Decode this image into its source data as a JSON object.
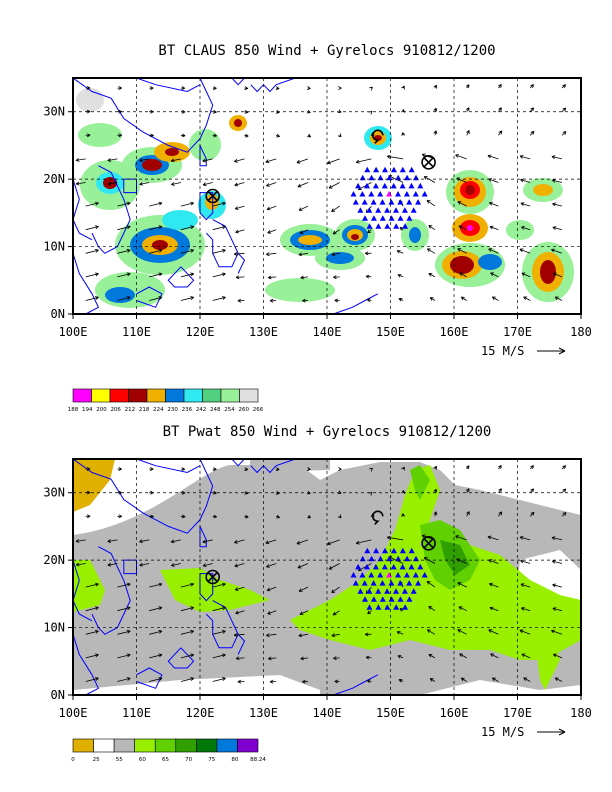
{
  "wind_ref_label": "15 M/S",
  "chart_data": [
    {
      "type": "heatmap",
      "title": "BT CLAUS 850 Wind + Gyrelocs 910812/1200",
      "x_ticks": [
        "100E",
        "110E",
        "120E",
        "130E",
        "140E",
        "150E",
        "160E",
        "170E",
        "180"
      ],
      "y_ticks": [
        "0N",
        "10N",
        "20N",
        "30N"
      ],
      "x_range": [
        100,
        180
      ],
      "y_range": [
        0,
        35
      ],
      "grid": true,
      "vector_ref": "15 M/S",
      "colorbar": {
        "labels": [
          "188",
          "194",
          "200",
          "206",
          "212",
          "218",
          "224",
          "230",
          "236",
          "242",
          "248",
          "254",
          "260",
          "266"
        ],
        "colors": [
          "#ff00ff",
          "#ffff00",
          "#ff0000",
          "#a00000",
          "#f0b000",
          "#0078dc",
          "#30e8f0",
          "#50d080",
          "#98f098",
          "#e0e0e0"
        ]
      },
      "gyre_locations": [
        {
          "lon": 122,
          "lat": 17.5,
          "marker": "cross-circle"
        },
        {
          "lon": 156,
          "lat": 22.5,
          "marker": "cross-circle"
        },
        {
          "lon": 148,
          "lat": 26.5,
          "marker": "spiral"
        }
      ]
    },
    {
      "type": "heatmap",
      "title": "BT Pwat 850 Wind + Gyrelocs 910812/1200",
      "x_ticks": [
        "100E",
        "110E",
        "120E",
        "130E",
        "140E",
        "150E",
        "160E",
        "170E",
        "180"
      ],
      "y_ticks": [
        "0N",
        "10N",
        "20N",
        "30N"
      ],
      "x_range": [
        100,
        180
      ],
      "y_range": [
        0,
        35
      ],
      "grid": true,
      "vector_ref": "15 M/S",
      "colorbar": {
        "labels": [
          "0",
          "25",
          "55",
          "60",
          "65",
          "70",
          "75",
          "80",
          "88.24"
        ],
        "colors": [
          "#e0b000",
          "#ffffff",
          "#b8b8b8",
          "#98f000",
          "#60d000",
          "#30a000",
          "#00780a",
          "#0078dc",
          "#8000d0"
        ]
      },
      "gyre_locations": [
        {
          "lon": 122,
          "lat": 17.5,
          "marker": "cross-circle"
        },
        {
          "lon": 156,
          "lat": 22.5,
          "marker": "cross-circle"
        },
        {
          "lon": 148,
          "lat": 26.5,
          "marker": "spiral"
        }
      ]
    }
  ]
}
